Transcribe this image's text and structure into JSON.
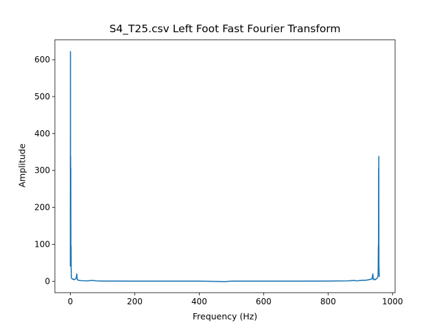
{
  "chart_data": {
    "type": "line",
    "title": "S4_T25.csv Left Foot Fast Fourier Transform",
    "xlabel": "Frequency (Hz)",
    "ylabel": "Amplitude",
    "xlim": [
      -48,
      1008
    ],
    "ylim": [
      -31,
      654
    ],
    "xticks": [
      0,
      200,
      400,
      600,
      800,
      1000
    ],
    "yticks": [
      0,
      100,
      200,
      300,
      400,
      500,
      600
    ],
    "grid": false,
    "line_color": "#1f77b4",
    "series": [
      {
        "x": [
          0,
          0.3,
          0.6,
          0.9,
          1.2,
          1.5,
          1.8,
          2.1,
          2.4,
          2.7,
          3.0,
          3.5,
          4.0,
          5,
          6,
          8,
          10,
          12,
          14,
          16,
          18,
          19,
          20,
          21,
          22,
          24,
          28,
          35,
          50,
          70,
          75,
          80,
          100,
          150,
          200,
          300,
          400,
          480,
          500,
          600,
          700,
          800,
          860,
          880,
          885,
          890,
          900,
          920,
          936,
          938,
          939,
          940,
          941,
          942,
          944,
          946,
          948,
          950,
          952,
          954,
          955,
          955.5,
          956,
          956.3,
          956.6,
          956.9,
          957.2,
          957.5,
          957.8,
          958.1,
          958.4,
          958.7,
          959
        ],
        "y": [
          40,
          622,
          45,
          338,
          60,
          307,
          90,
          40,
          95,
          30,
          15,
          10,
          8,
          7,
          6,
          5,
          6,
          4,
          5,
          6,
          8,
          15,
          20,
          8,
          4,
          3,
          2,
          1.5,
          1,
          2,
          1.5,
          1,
          0.5,
          0.5,
          0.2,
          0.2,
          0.2,
          -1,
          0.2,
          0.2,
          0.2,
          0.5,
          1,
          2,
          1.5,
          1,
          2,
          3,
          6,
          15,
          20,
          8,
          4,
          5,
          6,
          4,
          5,
          7,
          8,
          10,
          15,
          30,
          95,
          40,
          90,
          307,
          60,
          338,
          45,
          35,
          25,
          20,
          12
        ]
      }
    ]
  }
}
